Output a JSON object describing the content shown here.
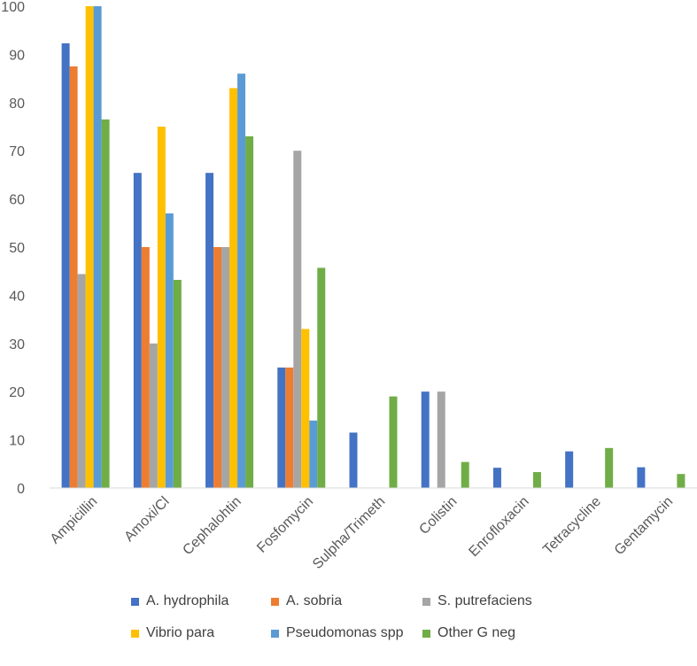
{
  "chart_data": {
    "type": "bar",
    "categories": [
      "Ampicillin",
      "Amoxi/Cl",
      "Cephalohtin",
      "Fosfomycin",
      "Sulpha/Trimeth",
      "Colistin",
      "Enrofloxacin",
      "Tetracycline",
      "Gentamycin"
    ],
    "series": [
      {
        "name": "A. hydrophila",
        "color": "#4472C4",
        "values": [
          92.3,
          65.4,
          65.4,
          25,
          11.5,
          20,
          4.2,
          7.6,
          4.3
        ]
      },
      {
        "name": "A. sobria",
        "color": "#ED7D31",
        "values": [
          87.5,
          50,
          50,
          25,
          0,
          0,
          0,
          0,
          0
        ]
      },
      {
        "name": "S. putrefaciens",
        "color": "#A5A5A5",
        "values": [
          44.4,
          30,
          50,
          70,
          0,
          20,
          0,
          0,
          0
        ]
      },
      {
        "name": "Vibrio para",
        "color": "#FFC000",
        "values": [
          100,
          75,
          83,
          33,
          0,
          0,
          0,
          0,
          0
        ]
      },
      {
        "name": "Pseudomonas spp",
        "color": "#5B9BD5",
        "values": [
          100,
          57,
          86,
          14,
          0,
          0,
          0,
          0,
          0
        ]
      },
      {
        "name": "Other G neg",
        "color": "#70AD47",
        "values": [
          76.5,
          43.2,
          73,
          45.7,
          19,
          5.4,
          3.3,
          8.3,
          2.9
        ]
      }
    ],
    "yticks": [
      "0",
      "10",
      "20",
      "30",
      "40",
      "50",
      "60",
      "70",
      "80",
      "90",
      "100"
    ],
    "ylim": [
      0,
      100
    ],
    "title": "",
    "xlabel": "",
    "ylabel": "",
    "grid": false,
    "legend_position": "bottom"
  }
}
